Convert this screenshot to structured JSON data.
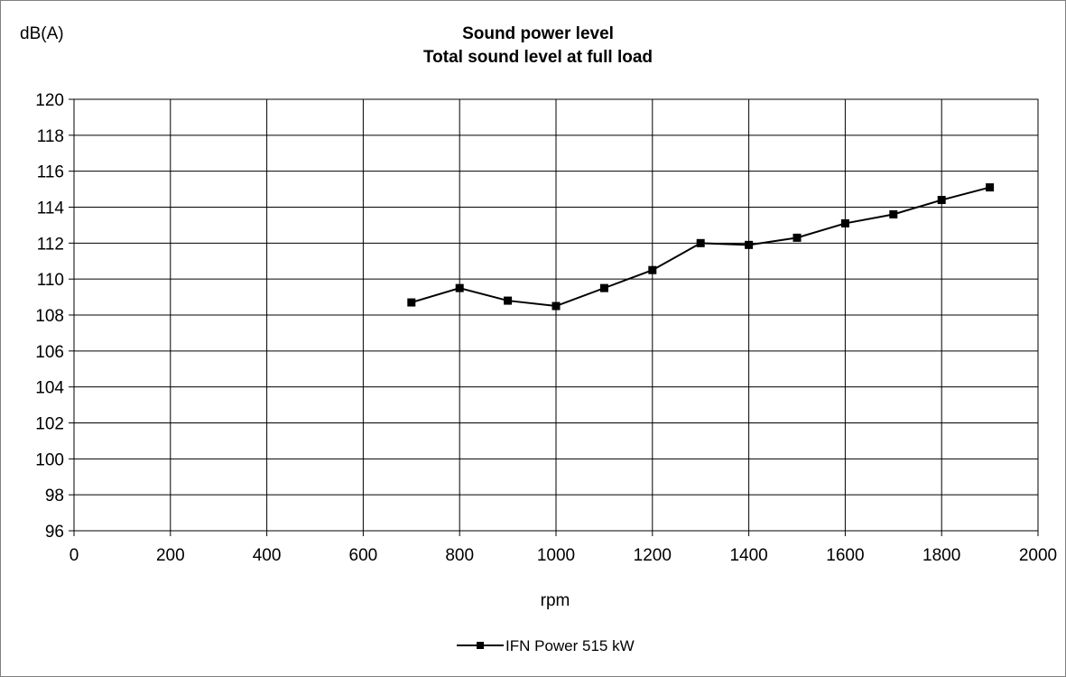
{
  "chart_data": {
    "type": "line",
    "title": "Sound power level",
    "subtitle": "Total sound level at full load",
    "ylabel": "dB(A)",
    "xlabel": "rpm",
    "xlim": [
      0,
      2000
    ],
    "ylim": [
      96,
      120
    ],
    "x_ticks": [
      0,
      200,
      400,
      600,
      800,
      1000,
      1200,
      1400,
      1600,
      1800,
      2000
    ],
    "y_ticks": [
      96,
      98,
      100,
      102,
      104,
      106,
      108,
      110,
      112,
      114,
      116,
      118,
      120
    ],
    "grid": true,
    "legend_position": "bottom",
    "series": [
      {
        "name": "IFN Power 515 kW",
        "color": "#000000",
        "marker": "square",
        "x": [
          700,
          800,
          900,
          1000,
          1100,
          1200,
          1300,
          1400,
          1500,
          1600,
          1700,
          1800,
          1900
        ],
        "y": [
          108.7,
          109.5,
          108.8,
          108.5,
          109.5,
          110.5,
          112.0,
          111.9,
          112.3,
          113.1,
          113.6,
          114.4,
          115.1
        ]
      }
    ]
  }
}
